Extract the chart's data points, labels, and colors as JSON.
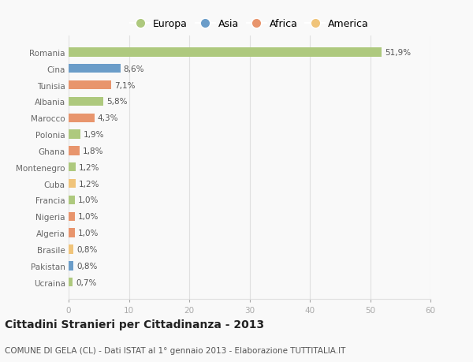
{
  "categories": [
    "Ucraina",
    "Pakistan",
    "Brasile",
    "Algeria",
    "Nigeria",
    "Francia",
    "Cuba",
    "Montenegro",
    "Ghana",
    "Polonia",
    "Marocco",
    "Albania",
    "Tunisia",
    "Cina",
    "Romania"
  ],
  "values": [
    0.7,
    0.8,
    0.8,
    1.0,
    1.0,
    1.0,
    1.2,
    1.2,
    1.8,
    1.9,
    4.3,
    5.8,
    7.1,
    8.6,
    51.9
  ],
  "labels": [
    "0,7%",
    "0,8%",
    "0,8%",
    "1,0%",
    "1,0%",
    "1,0%",
    "1,2%",
    "1,2%",
    "1,8%",
    "1,9%",
    "4,3%",
    "5,8%",
    "7,1%",
    "8,6%",
    "51,9%"
  ],
  "colors": [
    "#aec97e",
    "#6b9dc9",
    "#f0c47a",
    "#e8956d",
    "#e8956d",
    "#aec97e",
    "#f0c47a",
    "#aec97e",
    "#e8956d",
    "#aec97e",
    "#e8956d",
    "#aec97e",
    "#e8956d",
    "#6b9dc9",
    "#aec97e"
  ],
  "legend_labels": [
    "Europa",
    "Asia",
    "Africa",
    "America"
  ],
  "legend_colors": [
    "#aec97e",
    "#6b9dc9",
    "#e8956d",
    "#f0c47a"
  ],
  "title": "Cittadini Stranieri per Cittadinanza - 2013",
  "subtitle": "COMUNE DI GELA (CL) - Dati ISTAT al 1° gennaio 2013 - Elaborazione TUTTITALIA.IT",
  "xlim": [
    0,
    60
  ],
  "xticks": [
    0,
    10,
    20,
    30,
    40,
    50,
    60
  ],
  "background_color": "#f9f9f9",
  "grid_color": "#e0e0e0",
  "title_fontsize": 10,
  "subtitle_fontsize": 7.5,
  "label_fontsize": 7.5,
  "tick_fontsize": 7.5,
  "legend_fontsize": 9
}
